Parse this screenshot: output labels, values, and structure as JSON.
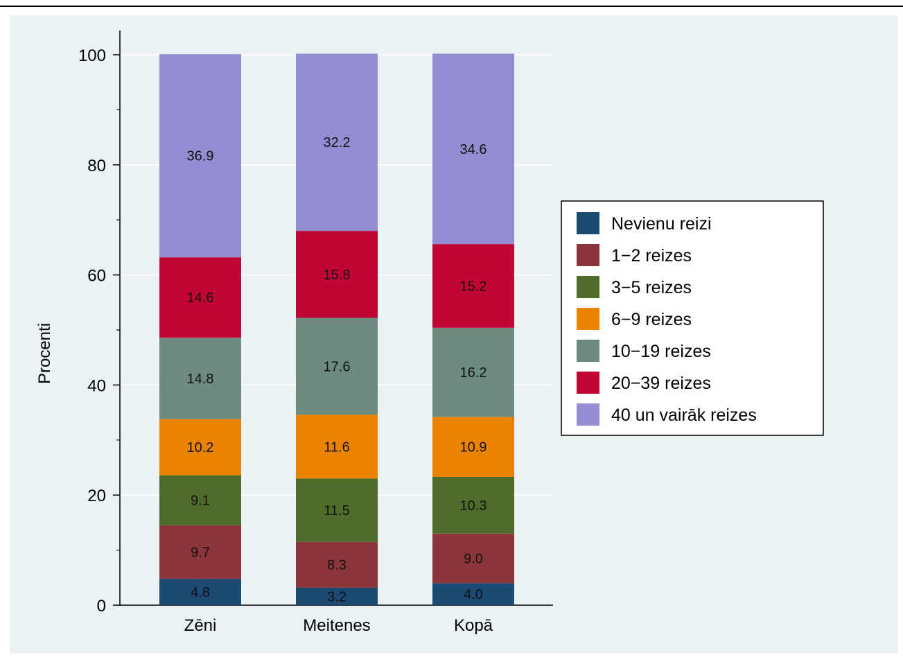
{
  "chart_data": {
    "type": "bar",
    "stacked": true,
    "title": "",
    "xlabel": "",
    "ylabel": "Procenti",
    "ylim": [
      0,
      100
    ],
    "yticks": [
      0,
      20,
      40,
      60,
      80,
      100
    ],
    "grid": true,
    "legend_position": "right",
    "categories": [
      "Zēni",
      "Meitenes",
      "Kopā"
    ],
    "series": [
      {
        "name": "Nevienu reizi",
        "color": "#1d4a72",
        "values": [
          4.8,
          3.2,
          4.0
        ]
      },
      {
        "name": "1−2 reizes",
        "color": "#8c353b",
        "values": [
          9.7,
          8.3,
          9.0
        ]
      },
      {
        "name": "3−5 reizes",
        "color": "#4e6b2a",
        "values": [
          9.1,
          11.5,
          10.3
        ]
      },
      {
        "name": "6−9 reizes",
        "color": "#e98300",
        "values": [
          10.2,
          11.6,
          10.9
        ]
      },
      {
        "name": "10−19 reizes",
        "color": "#6d8c7f",
        "values": [
          14.8,
          17.6,
          16.2
        ]
      },
      {
        "name": "20−39 reizes",
        "color": "#c10534",
        "values": [
          14.6,
          15.8,
          15.2
        ]
      },
      {
        "name": "40 un vairāk reizes",
        "color": "#938dd2",
        "values": [
          36.9,
          32.2,
          34.6
        ]
      }
    ]
  }
}
